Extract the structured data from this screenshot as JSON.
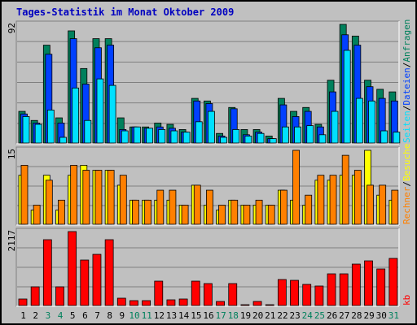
{
  "title": "Tages-Statistik im Monat Oktober 2009",
  "legend_separator": "/",
  "chart_data": [
    {
      "type": "bar",
      "ylim": [
        0,
        92
      ],
      "series": [
        {
          "name": "Anfragen",
          "color": "#00805C",
          "values": [
            25,
            18,
            76,
            20,
            87,
            58,
            81,
            81,
            20,
            13,
            13,
            16,
            15,
            11,
            35,
            33,
            8,
            28,
            11,
            11,
            6,
            35,
            25,
            28,
            15,
            49,
            92,
            83,
            49,
            42,
            40
          ]
        },
        {
          "name": "Dateien",
          "color": "#0040FF",
          "values": [
            23,
            16,
            69,
            16,
            81,
            46,
            74,
            76,
            11,
            13,
            12,
            13,
            12,
            9,
            33,
            31,
            6,
            27,
            7,
            9,
            4,
            30,
            21,
            25,
            13,
            40,
            84,
            76,
            44,
            35,
            33
          ]
        },
        {
          "name": "Seiten",
          "color": "#00E0FF",
          "values": [
            21,
            15,
            26,
            5,
            43,
            18,
            50,
            45,
            10,
            13,
            12,
            11,
            10,
            9,
            17,
            25,
            5,
            11,
            6,
            8,
            4,
            13,
            13,
            14,
            7,
            25,
            72,
            35,
            33,
            10,
            9
          ]
        }
      ]
    },
    {
      "type": "bar",
      "ylim": [
        0,
        15
      ],
      "series": [
        {
          "name": "Besuche",
          "color": "#FFFF00",
          "values": [
            10,
            3,
            10,
            3,
            10,
            12,
            11,
            11,
            8,
            5,
            5,
            5,
            5,
            4,
            8,
            4,
            3,
            5,
            4,
            4,
            4,
            7,
            5,
            4,
            9,
            9,
            10,
            10,
            15,
            6,
            5
          ]
        },
        {
          "name": "Rechner",
          "color": "#FF8000",
          "values": [
            12,
            4,
            9,
            5,
            12,
            11,
            11,
            11,
            10,
            5,
            5,
            7,
            7,
            4,
            8,
            7,
            4,
            5,
            4,
            5,
            4,
            7,
            15,
            6,
            10,
            10,
            14,
            11,
            8,
            8,
            7
          ]
        }
      ]
    },
    {
      "type": "bar",
      "ylim": [
        0,
        2117
      ],
      "categories": [
        "1",
        "2",
        "3",
        "4",
        "5",
        "6",
        "7",
        "8",
        "9",
        "10",
        "11",
        "12",
        "13",
        "14",
        "15",
        "16",
        "17",
        "18",
        "19",
        "20",
        "21",
        "22",
        "23",
        "24",
        "25",
        "26",
        "27",
        "28",
        "29",
        "30",
        "31"
      ],
      "category_colors": [
        "#000",
        "#000",
        "#00805C",
        "#00805C",
        "#000",
        "#000",
        "#000",
        "#000",
        "#000",
        "#00805C",
        "#00805C",
        "#000",
        "#000",
        "#000",
        "#000",
        "#000",
        "#00805C",
        "#00805C",
        "#000",
        "#000",
        "#000",
        "#000",
        "#000",
        "#00805C",
        "#00805C",
        "#000",
        "#000",
        "#000",
        "#000",
        "#000",
        "#00805C"
      ],
      "series": [
        {
          "name": "kb",
          "color": "#FF0000",
          "values": [
            207,
            552,
            1887,
            552,
            2117,
            1311,
            1472,
            1887,
            230,
            161,
            161,
            713,
            184,
            207,
            713,
            644,
            138,
            644,
            46,
            138,
            46,
            759,
            736,
            621,
            575,
            920,
            920,
            1196,
            1288,
            1058,
            1357
          ]
        }
      ]
    }
  ]
}
